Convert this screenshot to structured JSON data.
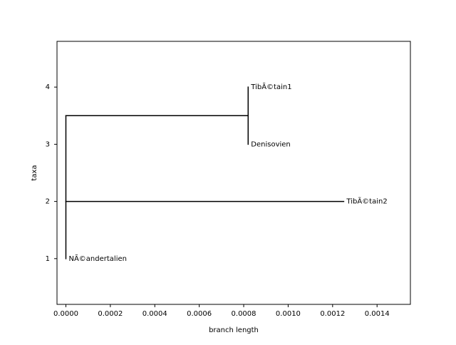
{
  "chart_data": {
    "type": "phylogenetic-tree",
    "xlabel": "branch length",
    "ylabel": "taxa",
    "xlim": [
      -4e-05,
      0.00155
    ],
    "ylim": [
      4.8,
      0.2
    ],
    "xticks": [
      "0.0000",
      "0.0002",
      "0.0004",
      "0.0006",
      "0.0008",
      "0.0010",
      "0.0012",
      "0.0014"
    ],
    "yticks": [
      "1",
      "2",
      "3",
      "4"
    ],
    "grid": false,
    "leaves": [
      {
        "name": "NÃ©andertalien",
        "x": 0.0,
        "y": 1
      },
      {
        "name": "TibÃ©tain2",
        "x": 0.00125,
        "y": 2
      },
      {
        "name": "Denisovien",
        "x": 0.00082,
        "y": 3
      },
      {
        "name": "TibÃ©tain1",
        "x": 0.00082,
        "y": 4
      }
    ],
    "branches": [
      {
        "from": [
          0.0,
          1
        ],
        "to": [
          0.0,
          3.5
        ]
      },
      {
        "from": [
          0.0,
          2
        ],
        "to": [
          0.00125,
          2
        ]
      },
      {
        "from": [
          0.0,
          3.5
        ],
        "to": [
          0.00082,
          3.5
        ]
      },
      {
        "from": [
          0.00082,
          3
        ],
        "to": [
          0.00082,
          4
        ]
      }
    ],
    "line_color": "#000000"
  }
}
